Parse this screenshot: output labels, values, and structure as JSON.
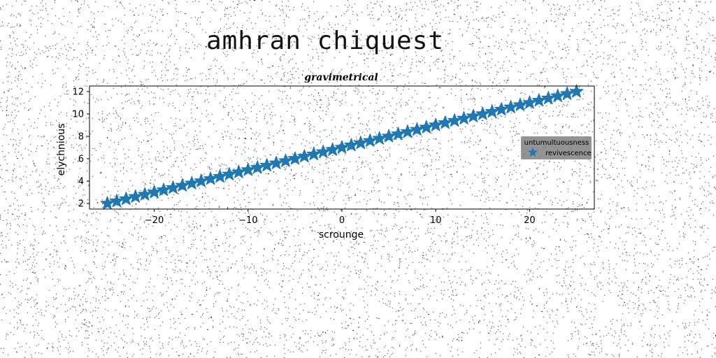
{
  "figure": {
    "suptitle": "amhran chiquest"
  },
  "colors": {
    "series": "#1f77b4",
    "legend_bg": "#808080",
    "axis": "#000000",
    "noise": "#000000"
  },
  "chart_data": {
    "type": "line",
    "title": "gravimetrical",
    "xlabel": "scrounge",
    "ylabel": "elychnious",
    "xlim": [
      -26.9,
      26.9
    ],
    "ylim": [
      1.5,
      12.5
    ],
    "xticks": [
      -20,
      -10,
      0,
      10,
      20
    ],
    "xtick_labels": [
      "−20",
      "−10",
      "0",
      "10",
      "20"
    ],
    "yticks": [
      2,
      4,
      6,
      8,
      10,
      12
    ],
    "ytick_labels": [
      "2",
      "4",
      "6",
      "8",
      "10",
      "12"
    ],
    "grid": false,
    "legend": {
      "title": "untumultuousness",
      "placement": "center-right",
      "entries": [
        "revivescence"
      ]
    },
    "series": [
      {
        "name": "revivescence",
        "marker": "star",
        "x": [
          -25,
          -24,
          -23,
          -22,
          -21,
          -20,
          -19,
          -18,
          -17,
          -16,
          -15,
          -14,
          -13,
          -12,
          -11,
          -10,
          -9,
          -8,
          -7,
          -6,
          -5,
          -4,
          -3,
          -2,
          -1,
          0,
          1,
          2,
          3,
          4,
          5,
          6,
          7,
          8,
          9,
          10,
          11,
          12,
          13,
          14,
          15,
          16,
          17,
          18,
          19,
          20,
          21,
          22,
          23,
          24,
          25
        ],
        "y": [
          2.0,
          2.2,
          2.4,
          2.6,
          2.8,
          3.0,
          3.2,
          3.4,
          3.6,
          3.8,
          4.0,
          4.2,
          4.4,
          4.6,
          4.8,
          5.0,
          5.2,
          5.4,
          5.6,
          5.8,
          6.0,
          6.2,
          6.4,
          6.6,
          6.8,
          7.0,
          7.2,
          7.4,
          7.6,
          7.8,
          8.0,
          8.2,
          8.4,
          8.6,
          8.8,
          9.0,
          9.2,
          9.4,
          9.6,
          9.8,
          10.0,
          10.2,
          10.4,
          10.6,
          10.8,
          11.0,
          11.2,
          11.4,
          11.6,
          11.8,
          12.0
        ]
      }
    ]
  }
}
